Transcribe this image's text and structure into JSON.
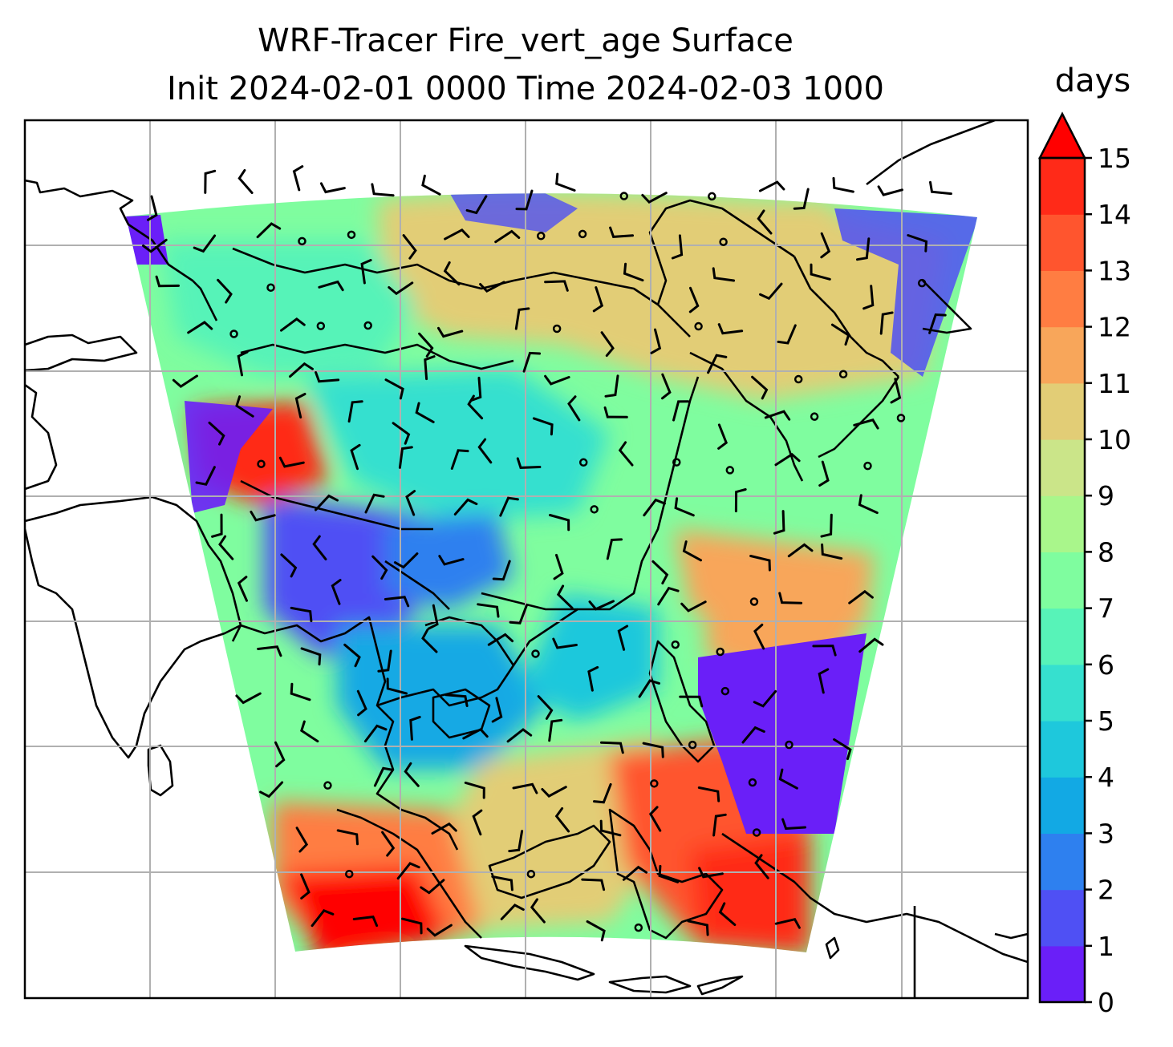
{
  "chart_data": {
    "type": "heatmap",
    "title": "WRF-Tracer Fire_vert_age Surface",
    "subtitle": "Init 2024-02-01 0000 Time 2024-02-03 1000",
    "colorbar": {
      "label": "days",
      "levels": [
        0,
        1,
        2,
        3,
        4,
        5,
        6,
        7,
        8,
        9,
        10,
        11,
        12,
        13,
        14,
        15
      ],
      "colors": [
        "#6a1ff8",
        "#4f50f4",
        "#2e80ef",
        "#12a9e4",
        "#1ec8dc",
        "#36e0cf",
        "#57f3b8",
        "#7ffd9f",
        "#a9f68b",
        "#cbe589",
        "#e2cd76",
        "#f8a65a",
        "#ff7d42",
        "#ff552e",
        "#ff2a18"
      ],
      "extend": "max",
      "extend_color": "#ff0000",
      "range": [
        0,
        15
      ]
    },
    "grid": true,
    "map_features": [
      "coastlines",
      "country borders",
      "wind barbs",
      "lat-lon gridlines"
    ]
  }
}
